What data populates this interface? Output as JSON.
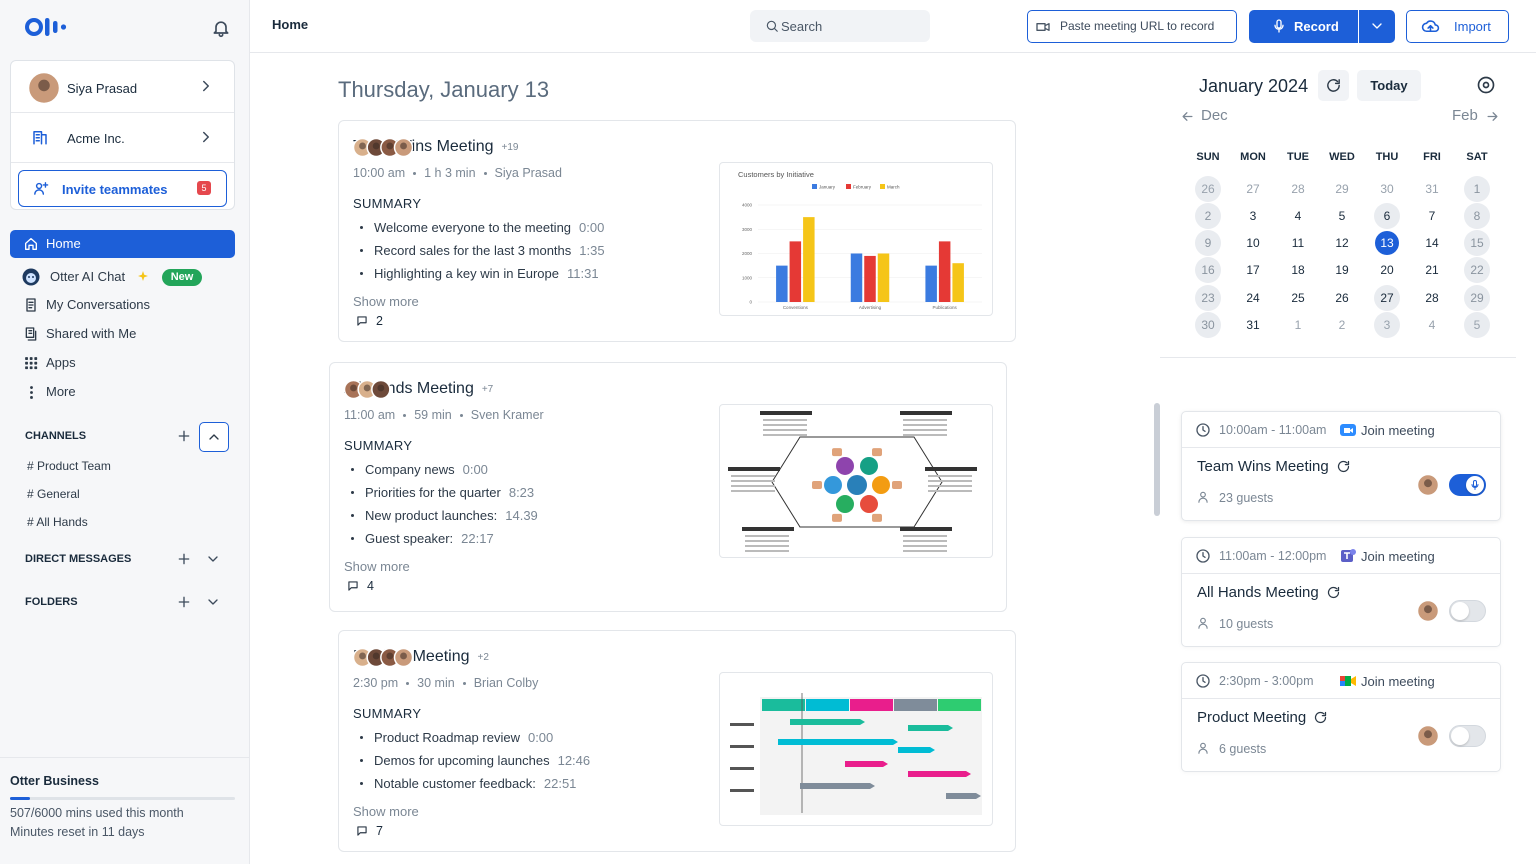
{
  "sidebar": {
    "user": "Siya Prasad",
    "org": "Acme Inc.",
    "invite": "Invite teammates",
    "invite_count": "5",
    "nav": [
      "Home",
      "Otter AI Chat",
      "My Conversations",
      "Shared with Me",
      "Apps",
      "More"
    ],
    "new_badge": "New",
    "channels_label": "CHANNELS",
    "channels": [
      "# Product Team",
      "# General",
      "# All Hands"
    ],
    "direct_messages_label": "DIRECT MESSAGES",
    "folders_label": "FOLDERS",
    "plan": {
      "name": "Otter Business",
      "usage": "507/6000 mins used this month",
      "reset": "Minutes reset in 11 days"
    }
  },
  "topbar": {
    "page": "Home",
    "search": "Search",
    "paste": "Paste meeting URL to record",
    "record": "Record",
    "import": "Import"
  },
  "main": {
    "date": "Thursday, January 13",
    "summary_label": "SUMMARY",
    "show_more": "Show more",
    "meetings": [
      {
        "title": "Team Wins Meeting",
        "extra": "+19",
        "time": "10:00 am",
        "duration": "1 h 3 min",
        "owner": "Siya Prasad",
        "summary": [
          {
            "text": "Welcome everyone to the meeting",
            "time": "0:00"
          },
          {
            "text": "Record sales for the last 3 months",
            "time": "1:35"
          },
          {
            "text": "Highlighting a key win in Europe",
            "time": "11:31"
          }
        ],
        "comments": 2,
        "thumbnail": {
          "type": "bar",
          "title": "Customers by Initiative",
          "categories": [
            "Conventions",
            "Advertising",
            "Publications"
          ],
          "series": [
            {
              "name": "January",
              "color": "#3b7be0",
              "values": [
                1500,
                2000,
                1500
              ]
            },
            {
              "name": "February",
              "color": "#e53935",
              "values": [
                2500,
                1900,
                2500
              ]
            },
            {
              "name": "March",
              "color": "#f5c518",
              "values": [
                3500,
                2000,
                1600
              ]
            }
          ],
          "ylim": [
            0,
            4000
          ],
          "yticks": [
            0,
            1000,
            2000,
            3000,
            4000
          ]
        }
      },
      {
        "title": "All Hands Meeting",
        "extra": "+7",
        "time": "11:00 am",
        "duration": "59 min",
        "owner": "Sven Kramer",
        "summary": [
          {
            "text": "Company news",
            "time": "0:00"
          },
          {
            "text": "Priorities for the quarter",
            "time": "8:23"
          },
          {
            "text": "New product launches:",
            "time": "14.39"
          },
          {
            "text": "Guest speaker:",
            "time": "22:17"
          }
        ],
        "comments": 4
      },
      {
        "title": "Product Meeting",
        "extra": "+2",
        "time": "2:30 pm",
        "duration": "30 min",
        "owner": "Brian Colby",
        "summary": [
          {
            "text": "Product Roadmap review",
            "time": "0:00"
          },
          {
            "text": "Demos for upcoming launches",
            "time": "12:46"
          },
          {
            "text": "Notable customer feedback:",
            "time": "22:51"
          }
        ],
        "comments": 7
      }
    ]
  },
  "calendar": {
    "month": "January 2024",
    "today": "Today",
    "prev": "Dec",
    "next": "Feb",
    "weekdays": [
      "SUN",
      "MON",
      "TUE",
      "WED",
      "THU",
      "FRI",
      "SAT"
    ],
    "weeks": [
      [
        26,
        27,
        28,
        29,
        30,
        31,
        1
      ],
      [
        2,
        3,
        4,
        5,
        6,
        7,
        8
      ],
      [
        9,
        10,
        11,
        12,
        13,
        14,
        15
      ],
      [
        16,
        17,
        18,
        19,
        20,
        21,
        22
      ],
      [
        23,
        24,
        25,
        26,
        27,
        28,
        29
      ],
      [
        30,
        31,
        1,
        2,
        3,
        4,
        5
      ]
    ],
    "selected": 13
  },
  "events": {
    "join_label": "Join meeting",
    "items": [
      {
        "time": "10:00am - 11:00am",
        "title": "Team Wins Meeting",
        "guests": "23 guests",
        "recording": true
      },
      {
        "time": "11:00am - 12:00pm",
        "title": "All Hands Meeting",
        "guests": "10 guests",
        "recording": false
      },
      {
        "time": "2:30pm - 3:00pm",
        "title": "Product Meeting",
        "guests": "6 guests",
        "recording": false
      }
    ]
  }
}
